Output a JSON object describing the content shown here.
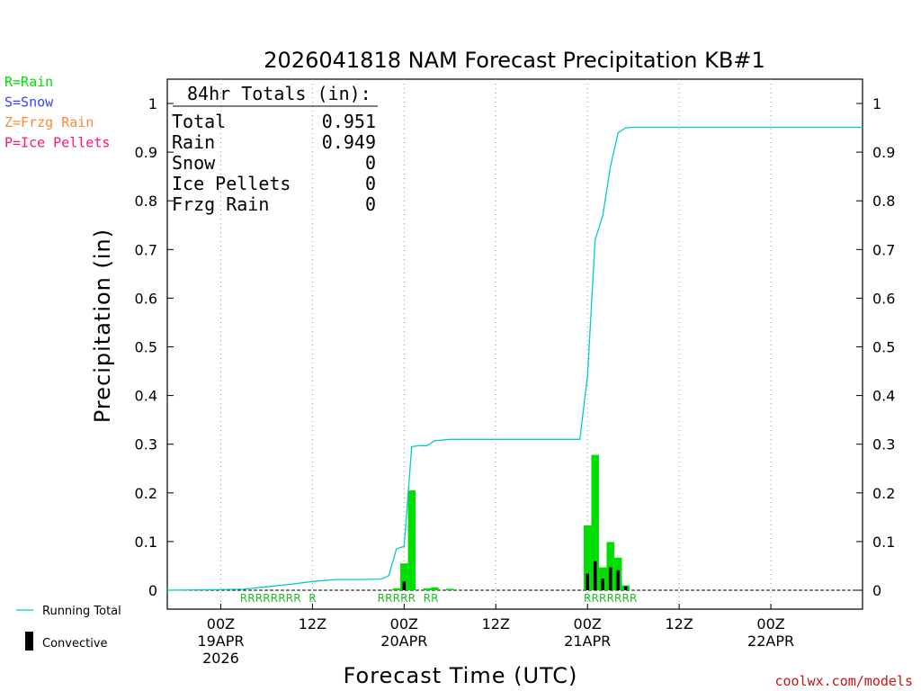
{
  "chart_data": {
    "type": "bar",
    "title": "2026041818 NAM Forecast Precipitation KB#1",
    "xlabel": "Forecast Time (UTC)",
    "ylabel": "Precipitation (in)",
    "ylim": [
      0,
      1.05
    ],
    "xlim_hours": [
      -7,
      84
    ],
    "y_ticks": [
      "0",
      "0.1",
      "0.2",
      "0.3",
      "0.4",
      "0.5",
      "0.6",
      "0.7",
      "0.8",
      "0.9",
      "1"
    ],
    "x_ticks": [
      {
        "hour": 0,
        "line1": "00Z",
        "line2": "19APR",
        "line3": "2026"
      },
      {
        "hour": 12,
        "line1": "12Z",
        "line2": "",
        "line3": ""
      },
      {
        "hour": 24,
        "line1": "00Z",
        "line2": "20APR",
        "line3": ""
      },
      {
        "hour": 36,
        "line1": "12Z",
        "line2": "",
        "line3": ""
      },
      {
        "hour": 48,
        "line1": "00Z",
        "line2": "21APR",
        "line3": ""
      },
      {
        "hour": 60,
        "line1": "12Z",
        "line2": "",
        "line3": ""
      },
      {
        "hour": 72,
        "line1": "00Z",
        "line2": "22APR",
        "line3": ""
      }
    ],
    "grid": "vertical-dotted",
    "series": [
      {
        "name": "Rain",
        "color": "#00dd00",
        "hours": [
          23,
          24,
          25,
          27,
          28,
          30,
          48,
          49,
          50,
          51,
          52,
          53
        ],
        "values": [
          0.004,
          0.055,
          0.205,
          0.004,
          0.006,
          0.003,
          0.133,
          0.278,
          0.047,
          0.099,
          0.067,
          0.01
        ]
      },
      {
        "name": "Convective",
        "color": "#000000",
        "hours": [
          24,
          48,
          49,
          50,
          51,
          52,
          53
        ],
        "values": [
          0.018,
          0.034,
          0.06,
          0.024,
          0.047,
          0.041,
          0.008
        ]
      },
      {
        "name": "Running Total",
        "color": "#00cccc",
        "x": [
          -7,
          3,
          6,
          9,
          12,
          15,
          18,
          21,
          22,
          23,
          24,
          25,
          26,
          27,
          28,
          30,
          33,
          36,
          42,
          47,
          48,
          49,
          50,
          51,
          52,
          53,
          54,
          55,
          60,
          70,
          84
        ],
        "y": [
          0,
          0.002,
          0.007,
          0.012,
          0.018,
          0.022,
          0.022,
          0.023,
          0.03,
          0.085,
          0.09,
          0.295,
          0.297,
          0.297,
          0.307,
          0.31,
          0.31,
          0.31,
          0.31,
          0.31,
          0.44,
          0.72,
          0.77,
          0.87,
          0.94,
          0.95,
          0.951,
          0.951,
          0.951,
          0.951,
          0.951
        ]
      }
    ],
    "ptype_markers": [
      {
        "hour": 3,
        "label": "R"
      },
      {
        "hour": 4,
        "label": "R"
      },
      {
        "hour": 5,
        "label": "R"
      },
      {
        "hour": 6,
        "label": "R"
      },
      {
        "hour": 7,
        "label": "R"
      },
      {
        "hour": 8,
        "label": "R"
      },
      {
        "hour": 9,
        "label": "R"
      },
      {
        "hour": 10,
        "label": "R"
      },
      {
        "hour": 12,
        "label": "R"
      },
      {
        "hour": 21,
        "label": "R"
      },
      {
        "hour": 22,
        "label": "R"
      },
      {
        "hour": 23,
        "label": "R"
      },
      {
        "hour": 24,
        "label": "R"
      },
      {
        "hour": 25,
        "label": "R"
      },
      {
        "hour": 27,
        "label": "R"
      },
      {
        "hour": 28,
        "label": "R"
      },
      {
        "hour": 48,
        "label": "R"
      },
      {
        "hour": 49,
        "label": "R"
      },
      {
        "hour": 50,
        "label": "R"
      },
      {
        "hour": 51,
        "label": "R"
      },
      {
        "hour": 52,
        "label": "R"
      },
      {
        "hour": 53,
        "label": "R"
      },
      {
        "hour": 54,
        "label": "R"
      }
    ],
    "totals": {
      "header": "84hr Totals (in):",
      "rows": [
        {
          "label": "Total",
          "value": "0.951"
        },
        {
          "label": "Rain",
          "value": "0.949"
        },
        {
          "label": "Snow",
          "value": "0"
        },
        {
          "label": "Ice Pellets",
          "value": "0"
        },
        {
          "label": "Frzg Rain",
          "value": "0"
        }
      ]
    },
    "ptype_legend": [
      {
        "text": "R=Rain",
        "color": "#00dd00"
      },
      {
        "text": "S=Snow",
        "color": "#3344ff"
      },
      {
        "text": "Z=Frzg Rain",
        "color": "#ff8833"
      },
      {
        "text": "P=Ice Pellets",
        "color": "#ff1177"
      }
    ],
    "bottom_legend": [
      {
        "text": "Running Total",
        "kind": "line"
      },
      {
        "text": "Convective",
        "kind": "bar"
      }
    ],
    "credit": "coolwx.com/models"
  }
}
